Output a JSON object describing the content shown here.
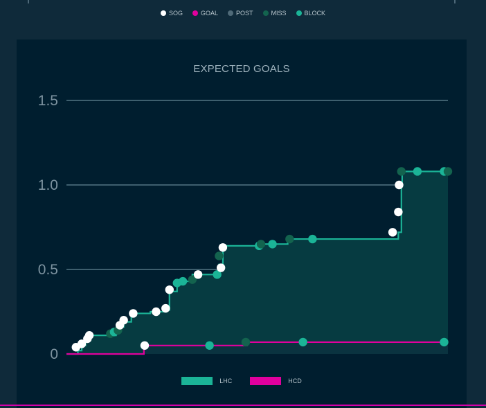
{
  "shot_legend": [
    {
      "label": "SOG",
      "color": "#ffffff"
    },
    {
      "label": "GOAL",
      "color": "#e0009d"
    },
    {
      "label": "POST",
      "color": "#4f6a78"
    },
    {
      "label": "MISS",
      "color": "#13634e"
    },
    {
      "label": "BLOCK",
      "color": "#1bb497"
    }
  ],
  "chart_data": {
    "type": "line",
    "title": "EXPECTED GOALS",
    "xlabel": "",
    "ylabel": "",
    "ylim": [
      0,
      1.5
    ],
    "yticks": [
      {
        "label": "1.5",
        "value": 1.5
      },
      {
        "label": "1.0",
        "value": 1.0
      },
      {
        "label": "0.5",
        "value": 0.5
      },
      {
        "label": "0",
        "value": 0
      }
    ],
    "xlim": [
      0,
      100
    ],
    "grid": true,
    "legend_position": "bottom",
    "series": [
      {
        "name": "LHC",
        "color": "#1bb497",
        "area": true,
        "step_points": [
          [
            0,
            0.0
          ],
          [
            3,
            0.02
          ],
          [
            4,
            0.05
          ],
          [
            5,
            0.08
          ],
          [
            6,
            0.11
          ],
          [
            11,
            0.11
          ],
          [
            13,
            0.13
          ],
          [
            14,
            0.16
          ],
          [
            15,
            0.19
          ],
          [
            17,
            0.24
          ],
          [
            22,
            0.25
          ],
          [
            26,
            0.26
          ],
          [
            27,
            0.37
          ],
          [
            29,
            0.43
          ],
          [
            33,
            0.47
          ],
          [
            39,
            0.47
          ],
          [
            40,
            0.53
          ],
          [
            41,
            0.64
          ],
          [
            50,
            0.64
          ],
          [
            51,
            0.65
          ],
          [
            54,
            0.65
          ],
          [
            58,
            0.68
          ],
          [
            64,
            0.68
          ],
          [
            85,
            0.68
          ],
          [
            87,
            0.72
          ],
          [
            87.8,
            1.0
          ],
          [
            88,
            1.08
          ],
          [
            100,
            1.08
          ]
        ],
        "shots": [
          {
            "x": 2.5,
            "y": 0.04,
            "kind": "SOG"
          },
          {
            "x": 4.0,
            "y": 0.06,
            "kind": "SOG"
          },
          {
            "x": 5.5,
            "y": 0.09,
            "kind": "SOG"
          },
          {
            "x": 6.0,
            "y": 0.11,
            "kind": "SOG"
          },
          {
            "x": 11.5,
            "y": 0.12,
            "kind": "MISS"
          },
          {
            "x": 12.5,
            "y": 0.13,
            "kind": "BLOCK"
          },
          {
            "x": 13.5,
            "y": 0.14,
            "kind": "MISS"
          },
          {
            "x": 14.0,
            "y": 0.17,
            "kind": "SOG"
          },
          {
            "x": 15.0,
            "y": 0.2,
            "kind": "SOG"
          },
          {
            "x": 17.5,
            "y": 0.24,
            "kind": "SOG"
          },
          {
            "x": 23.5,
            "y": 0.25,
            "kind": "SOG"
          },
          {
            "x": 26.0,
            "y": 0.27,
            "kind": "SOG"
          },
          {
            "x": 27.0,
            "y": 0.38,
            "kind": "SOG"
          },
          {
            "x": 29.0,
            "y": 0.42,
            "kind": "BLOCK"
          },
          {
            "x": 30.5,
            "y": 0.43,
            "kind": "BLOCK"
          },
          {
            "x": 33.0,
            "y": 0.44,
            "kind": "MISS"
          },
          {
            "x": 34.5,
            "y": 0.47,
            "kind": "SOG"
          },
          {
            "x": 39.5,
            "y": 0.47,
            "kind": "BLOCK"
          },
          {
            "x": 40.0,
            "y": 0.58,
            "kind": "MISS"
          },
          {
            "x": 40.5,
            "y": 0.51,
            "kind": "SOG"
          },
          {
            "x": 41.0,
            "y": 0.63,
            "kind": "SOG"
          },
          {
            "x": 50.5,
            "y": 0.64,
            "kind": "BLOCK"
          },
          {
            "x": 51.0,
            "y": 0.65,
            "kind": "MISS"
          },
          {
            "x": 54.0,
            "y": 0.65,
            "kind": "BLOCK"
          },
          {
            "x": 58.5,
            "y": 0.68,
            "kind": "MISS"
          },
          {
            "x": 64.5,
            "y": 0.68,
            "kind": "BLOCK"
          },
          {
            "x": 85.5,
            "y": 0.72,
            "kind": "SOG"
          },
          {
            "x": 87.0,
            "y": 0.84,
            "kind": "SOG"
          },
          {
            "x": 87.2,
            "y": 1.0,
            "kind": "SOG"
          },
          {
            "x": 87.8,
            "y": 1.08,
            "kind": "MISS"
          },
          {
            "x": 92.0,
            "y": 1.08,
            "kind": "BLOCK"
          },
          {
            "x": 99.0,
            "y": 1.08,
            "kind": "BLOCK"
          },
          {
            "x": 100.0,
            "y": 1.08,
            "kind": "MISS"
          }
        ]
      },
      {
        "name": "HCD",
        "color": "#e0009d",
        "area": true,
        "step_points": [
          [
            0,
            0.0
          ],
          [
            20,
            0.0
          ],
          [
            20.3,
            0.05
          ],
          [
            47,
            0.05
          ],
          [
            47.3,
            0.07
          ],
          [
            100,
            0.07
          ]
        ],
        "shots": [
          {
            "x": 20.5,
            "y": 0.05,
            "kind": "SOG"
          },
          {
            "x": 37.5,
            "y": 0.05,
            "kind": "BLOCK"
          },
          {
            "x": 47.0,
            "y": 0.07,
            "kind": "MISS"
          },
          {
            "x": 62.0,
            "y": 0.07,
            "kind": "BLOCK"
          },
          {
            "x": 99.0,
            "y": 0.07,
            "kind": "BLOCK"
          }
        ]
      }
    ]
  }
}
